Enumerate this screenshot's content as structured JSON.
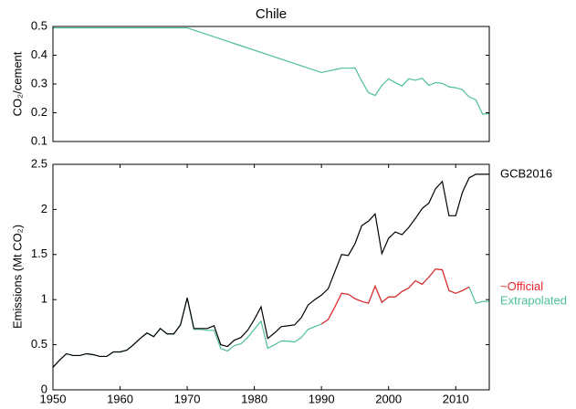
{
  "chart_data": [
    {
      "type": "line",
      "title": "Chile",
      "ylabel": "CO₂/cement",
      "x": [
        1950,
        1970,
        1990,
        1991,
        1992,
        1993,
        1994,
        1995,
        1996,
        1997,
        1998,
        1999,
        2000,
        2001,
        2002,
        2003,
        2004,
        2005,
        2006,
        2007,
        2008,
        2009,
        2010,
        2011,
        2012,
        2013,
        2014,
        2015
      ],
      "series": [
        {
          "color": "#4dbf97",
          "values": [
            0.495,
            0.495,
            0.34,
            0.345,
            0.35,
            0.355,
            0.355,
            0.356,
            0.31,
            0.27,
            0.26,
            0.295,
            0.318,
            0.305,
            0.293,
            0.318,
            0.313,
            0.32,
            0.295,
            0.305,
            0.302,
            0.29,
            0.287,
            0.28,
            0.255,
            0.245,
            0.195,
            0.197
          ]
        }
      ],
      "xlim": [
        1950,
        2015
      ],
      "ylim": [
        0.1,
        0.5
      ],
      "yticks": [
        0.1,
        0.2,
        0.3,
        0.4,
        0.5
      ]
    },
    {
      "type": "line",
      "ylabel": "Emissions (Mt CO₂)",
      "x": [
        1950,
        1951,
        1952,
        1953,
        1954,
        1955,
        1956,
        1957,
        1958,
        1959,
        1960,
        1961,
        1962,
        1963,
        1964,
        1965,
        1966,
        1967,
        1968,
        1969,
        1970,
        1971,
        1972,
        1973,
        1974,
        1975,
        1976,
        1977,
        1978,
        1979,
        1980,
        1981,
        1982,
        1983,
        1984,
        1985,
        1986,
        1987,
        1988,
        1989,
        1990,
        1991,
        1992,
        1993,
        1994,
        1995,
        1996,
        1997,
        1998,
        1999,
        2000,
        2001,
        2002,
        2003,
        2004,
        2005,
        2006,
        2007,
        2008,
        2009,
        2010,
        2011,
        2012,
        2013,
        2014,
        2015
      ],
      "series": [
        {
          "name": "Extrapolated",
          "color": "#4dbf97",
          "values": [
            0.25,
            0.33,
            0.4,
            0.38,
            0.38,
            0.4,
            0.39,
            0.37,
            0.37,
            0.42,
            0.42,
            0.44,
            0.5,
            0.57,
            0.63,
            0.59,
            0.68,
            0.62,
            0.62,
            0.72,
            1.02,
            0.67,
            0.67,
            0.66,
            0.66,
            0.46,
            0.43,
            0.49,
            0.51,
            0.58,
            0.67,
            0.76,
            0.46,
            0.5,
            0.54,
            0.54,
            0.53,
            0.58,
            0.67,
            0.7,
            0.73,
            0.78,
            0.92,
            1.07,
            1.06,
            1.01,
            0.98,
            0.96,
            1.15,
            0.97,
            1.03,
            1.03,
            1.09,
            1.13,
            1.21,
            1.17,
            1.25,
            1.34,
            1.33,
            1.1,
            1.07,
            1.1,
            1.14,
            0.96,
            0.98,
            0.98
          ]
        },
        {
          "name": "GCB2016",
          "color": "#000000",
          "values": [
            0.25,
            0.33,
            0.4,
            0.38,
            0.38,
            0.4,
            0.39,
            0.37,
            0.37,
            0.42,
            0.42,
            0.44,
            0.5,
            0.57,
            0.63,
            0.59,
            0.68,
            0.62,
            0.62,
            0.72,
            1.02,
            0.68,
            0.68,
            0.68,
            0.71,
            0.5,
            0.48,
            0.55,
            0.58,
            0.66,
            0.78,
            0.92,
            0.57,
            0.63,
            0.7,
            0.71,
            0.72,
            0.8,
            0.94,
            1.0,
            1.05,
            1.12,
            1.31,
            1.5,
            1.49,
            1.62,
            1.82,
            1.87,
            1.95,
            1.51,
            1.68,
            1.75,
            1.72,
            1.8,
            1.9,
            2.01,
            2.07,
            2.23,
            2.31,
            1.93,
            1.93,
            2.19,
            2.35,
            2.39,
            2.39,
            2.39
          ]
        },
        {
          "name": "~Official",
          "color": "#e8262a",
          "values": [
            null,
            null,
            null,
            null,
            null,
            null,
            null,
            null,
            null,
            null,
            null,
            null,
            null,
            null,
            null,
            null,
            null,
            null,
            null,
            null,
            null,
            null,
            null,
            null,
            null,
            null,
            null,
            null,
            null,
            null,
            null,
            null,
            null,
            null,
            null,
            null,
            null,
            null,
            null,
            null,
            0.73,
            0.78,
            0.92,
            1.07,
            1.06,
            1.01,
            0.98,
            0.96,
            1.15,
            0.97,
            1.03,
            1.03,
            1.09,
            1.13,
            1.21,
            1.17,
            1.25,
            1.34,
            1.33,
            1.1,
            1.07,
            1.1,
            1.14,
            null,
            null,
            null
          ]
        }
      ],
      "xlim": [
        1950,
        2015
      ],
      "xticks": [
        1950,
        1960,
        1970,
        1980,
        1990,
        2000,
        2010
      ],
      "ylim": [
        0,
        2.5
      ],
      "yticks": [
        0,
        0.5,
        1,
        1.5,
        2,
        2.5
      ]
    }
  ]
}
